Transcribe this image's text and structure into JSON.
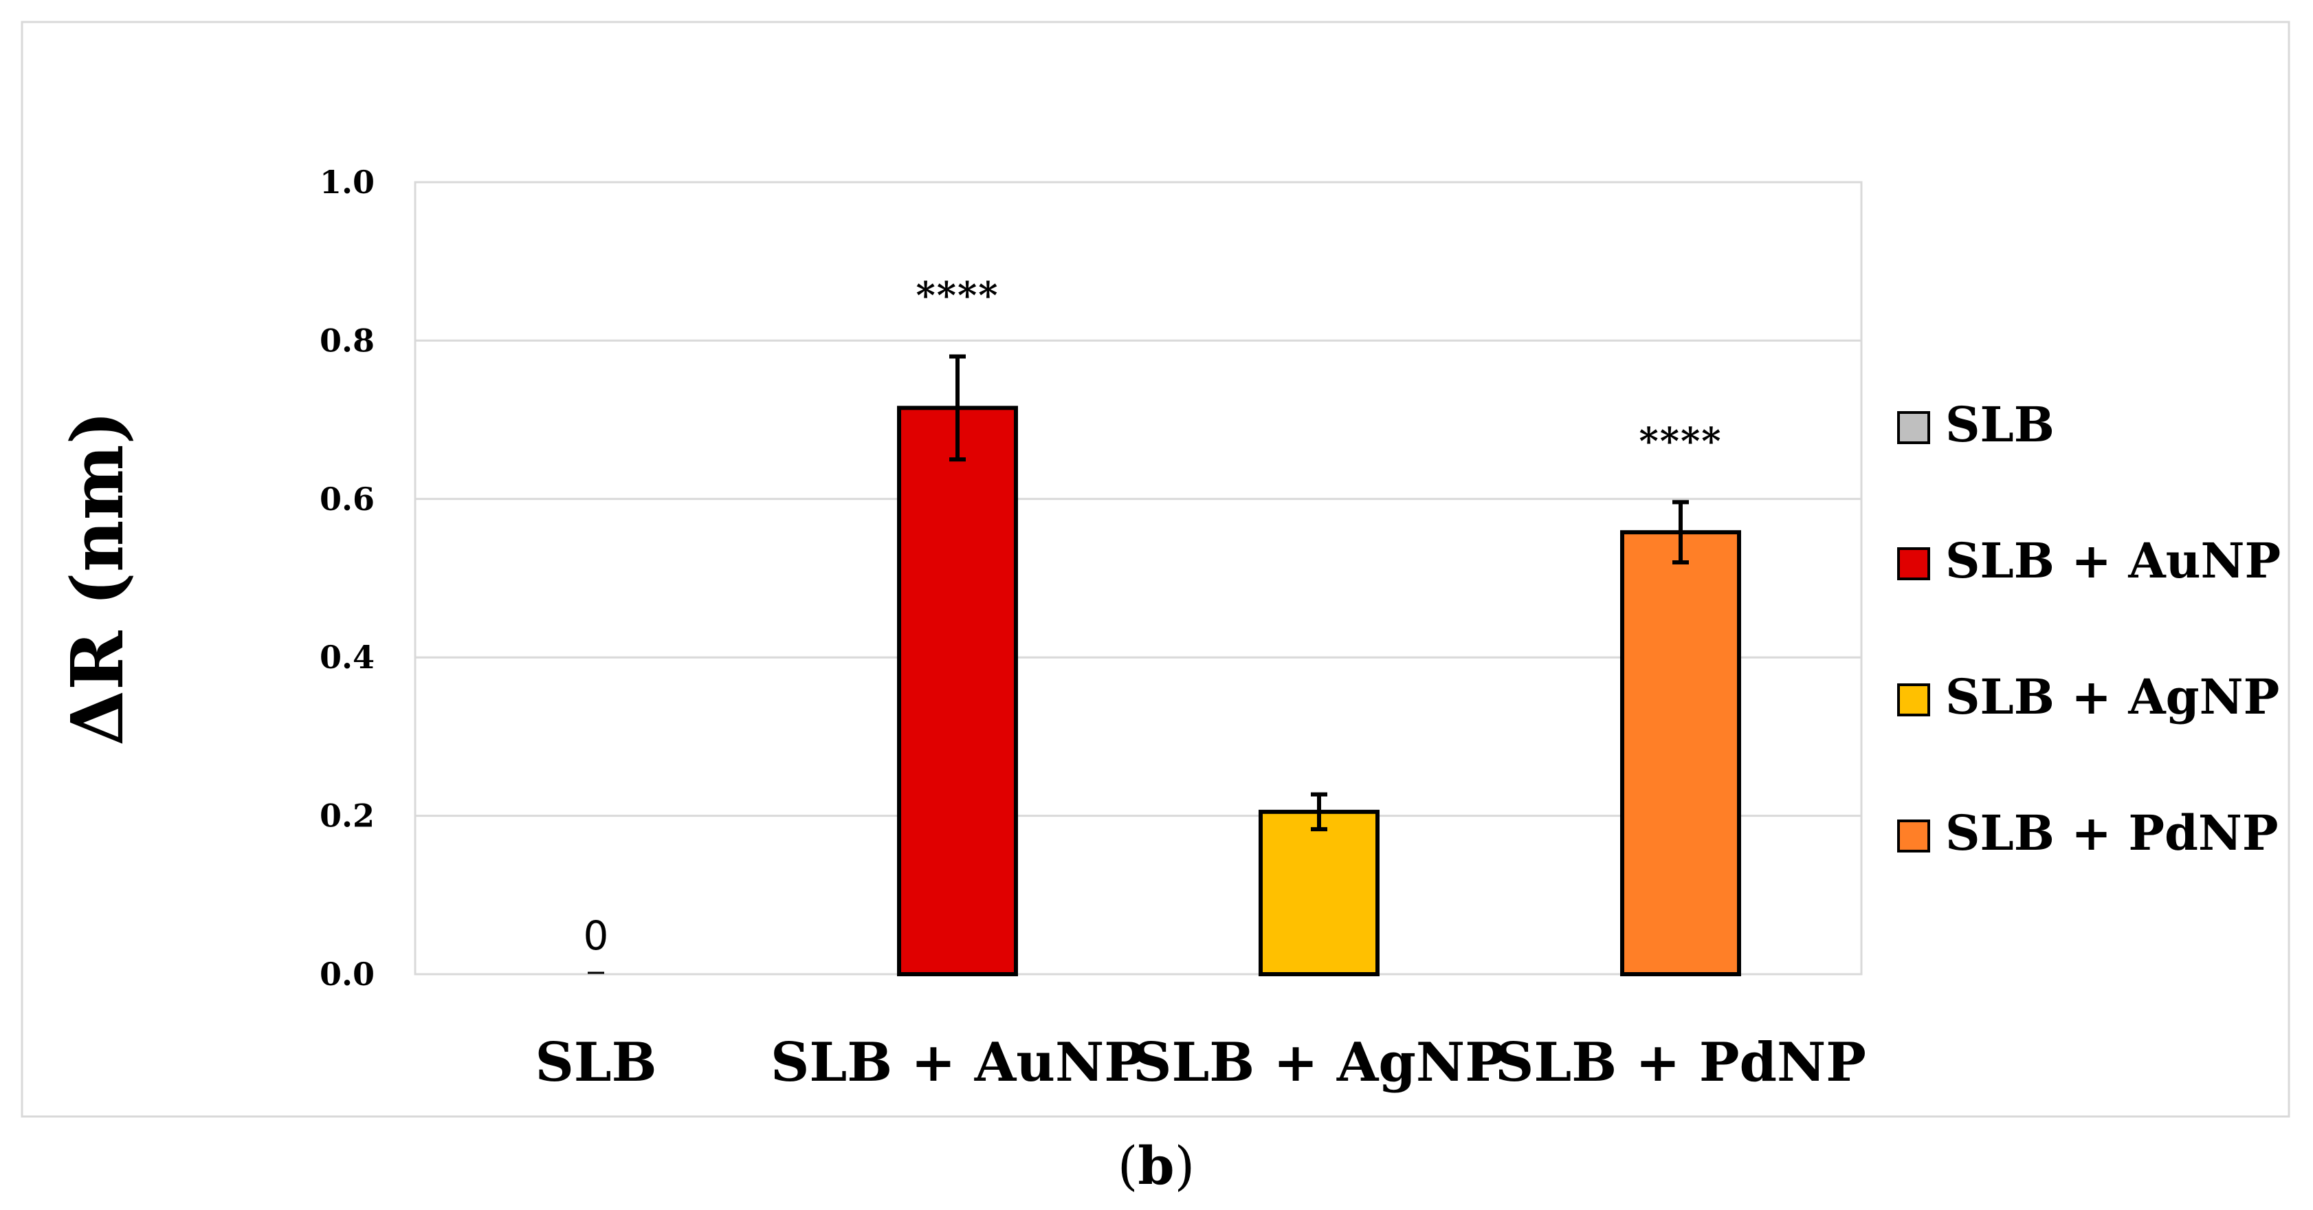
{
  "chart_data": {
    "type": "bar",
    "title": "",
    "xlabel": "",
    "ylabel": "ΔR (nm)",
    "ylim": [
      0,
      1.0
    ],
    "yticks": [
      "0.0",
      "0.2",
      "0.4",
      "0.6",
      "0.8",
      "1.0"
    ],
    "ytick_values": [
      0,
      0.2,
      0.4,
      0.6,
      0.8,
      1.0
    ],
    "grid": true,
    "categories": [
      "SLB",
      "SLB + AuNP",
      "SLB + AgNP",
      "SLB + PdNP"
    ],
    "values": [
      0,
      0.715,
      0.205,
      0.558
    ],
    "errors": [
      0,
      0.065,
      0.022,
      0.038
    ],
    "colors": [
      "#bfbfbf",
      "#e00000",
      "#ffc000",
      "#ff7f27"
    ],
    "annotations": [
      "0",
      "****",
      "",
      "****"
    ],
    "legend": {
      "placement": "right",
      "entries": [
        "SLB",
        "SLB + AuNP",
        "SLB + AgNP",
        "SLB + PdNP"
      ]
    },
    "caption": {
      "open": "(",
      "label": "b",
      "close": ")"
    }
  }
}
